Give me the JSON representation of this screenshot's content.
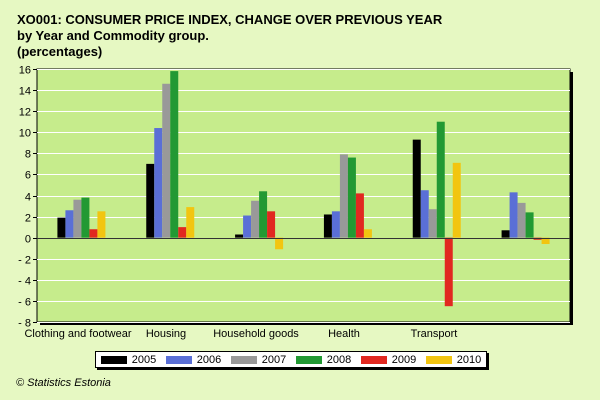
{
  "title_lines": [
    "XO001: CONSUMER PRICE INDEX, CHANGE OVER PREVIOUS YEAR",
    "by Year and Commodity group.",
    "(percentages)"
  ],
  "footer": "© Statistics Estonia",
  "chart_data": {
    "type": "bar",
    "title": "XO001: CONSUMER PRICE INDEX, CHANGE OVER PREVIOUS YEAR by Year and Commodity group. (percentages)",
    "categories": [
      "Clothing and footwear",
      "Housing",
      "Household goods",
      "Health",
      "Transport",
      ""
    ],
    "ylim": [
      -8,
      16
    ],
    "yticks": [
      16,
      14,
      12,
      10,
      8,
      6,
      4,
      2,
      0,
      -2,
      -4,
      -6,
      -8
    ],
    "ytick_labels": [
      "16",
      "14",
      "12",
      "10",
      "8",
      "6",
      "4",
      "2",
      "0",
      "- 2",
      "- 4",
      "- 6",
      "- 8"
    ],
    "grid": true,
    "legend_position": "bottom",
    "series": [
      {
        "name": "2005",
        "color": "#000000",
        "values": [
          1.9,
          7.0,
          0.3,
          2.2,
          9.3,
          0.7
        ]
      },
      {
        "name": "2006",
        "color": "#5a6fd6",
        "values": [
          2.6,
          10.4,
          2.1,
          2.5,
          4.5,
          4.3
        ]
      },
      {
        "name": "2007",
        "color": "#999999",
        "values": [
          3.6,
          14.6,
          3.5,
          7.9,
          2.7,
          3.3
        ]
      },
      {
        "name": "2008",
        "color": "#229933",
        "values": [
          3.8,
          15.8,
          4.4,
          7.6,
          11.0,
          2.4
        ]
      },
      {
        "name": "2009",
        "color": "#e12820",
        "values": [
          0.8,
          1.0,
          2.5,
          4.2,
          -6.5,
          -0.2
        ]
      },
      {
        "name": "2010",
        "color": "#f2c511",
        "values": [
          2.5,
          2.9,
          -1.1,
          0.8,
          7.1,
          -0.6
        ]
      }
    ]
  }
}
